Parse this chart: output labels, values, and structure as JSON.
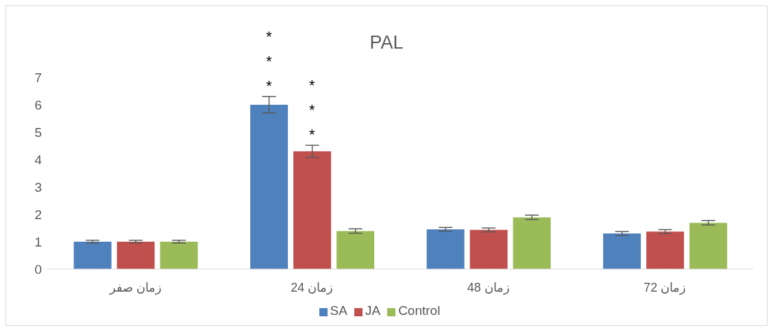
{
  "chart_data": {
    "type": "bar",
    "title": "PAL",
    "categories": [
      "زمان صفر",
      "زمان 24",
      "زمان 48",
      "زمان 72"
    ],
    "series": [
      {
        "name": "SA",
        "color": "#4f81bd",
        "values": [
          1.0,
          6.0,
          1.45,
          1.3
        ],
        "errors": [
          0.05,
          0.3,
          0.07,
          0.07
        ]
      },
      {
        "name": "JA",
        "color": "#c0504d",
        "values": [
          1.0,
          4.3,
          1.43,
          1.37
        ],
        "errors": [
          0.05,
          0.22,
          0.07,
          0.07
        ]
      },
      {
        "name": "Control",
        "color": "#9bbb59",
        "values": [
          1.0,
          1.39,
          1.89,
          1.69
        ],
        "errors": [
          0.05,
          0.08,
          0.08,
          0.08
        ]
      }
    ],
    "ylim": [
      0,
      7
    ],
    "yticks": [
      0,
      1,
      2,
      3,
      4,
      5,
      6,
      7
    ],
    "grid": false,
    "legend": "bottom",
    "annotations": [
      "***",
      "***"
    ]
  }
}
